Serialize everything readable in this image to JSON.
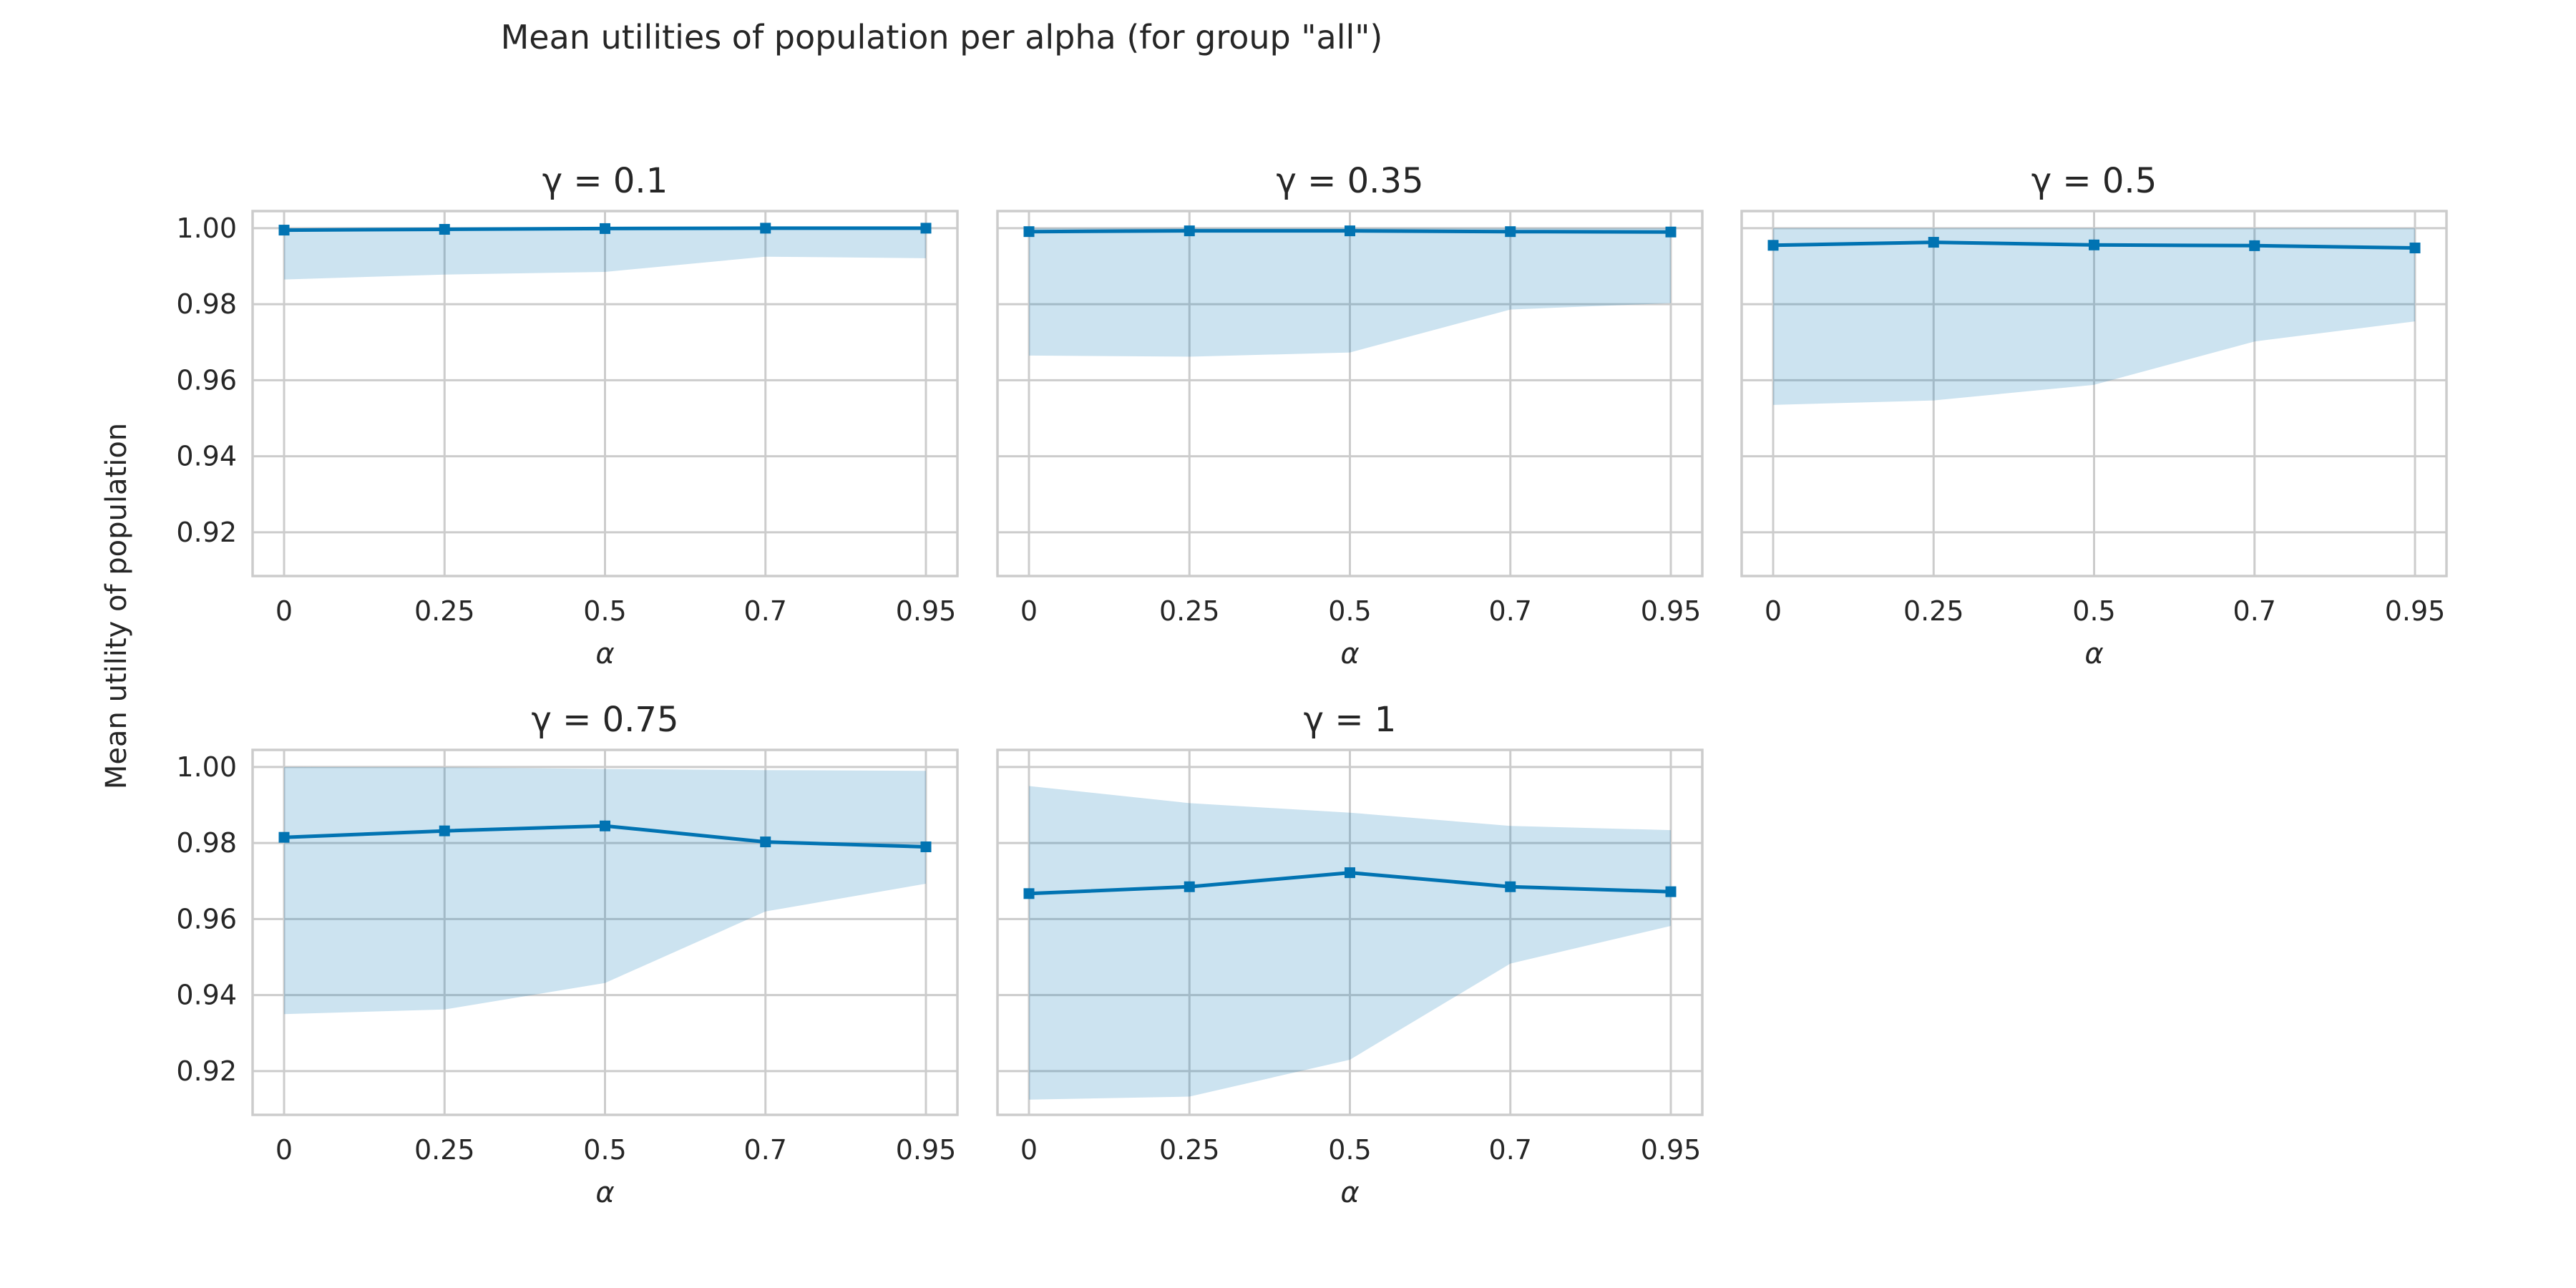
{
  "figure": {
    "suptitle": "Mean utilities of population per alpha (for group \"all\")",
    "ylabel": "Mean utility of population",
    "series_color": "#0173b2"
  },
  "chart_data": [
    {
      "type": "line",
      "title": "γ = 0.1",
      "x": [
        "0",
        "0.25",
        "0.5",
        "0.7",
        "0.95"
      ],
      "xlabel": "α",
      "ylabel": "Mean utility of population",
      "ylim": [
        0.9085,
        1.0045
      ],
      "yticks": [
        "0.92",
        "0.94",
        "0.96",
        "0.98",
        "1.00"
      ],
      "series": [
        {
          "values": [
            0.9995,
            0.9997,
            0.9999,
            1.0,
            1.0
          ],
          "lower": [
            0.9865,
            0.9878,
            0.9885,
            0.9925,
            0.9921
          ],
          "upper": [
            1.0,
            1.0,
            1.0,
            1.0,
            1.0
          ]
        }
      ],
      "grid": true
    },
    {
      "type": "line",
      "title": "γ = 0.35",
      "x": [
        "0",
        "0.25",
        "0.5",
        "0.7",
        "0.95"
      ],
      "xlabel": "α",
      "ylim": [
        0.9085,
        1.0045
      ],
      "yticks": [],
      "series": [
        {
          "values": [
            0.9991,
            0.9993,
            0.9993,
            0.9991,
            0.999
          ],
          "lower": [
            0.9665,
            0.9662,
            0.9673,
            0.9786,
            0.9803
          ],
          "upper": [
            1.0,
            1.0,
            1.0,
            1.0,
            1.0
          ]
        }
      ],
      "grid": true
    },
    {
      "type": "line",
      "title": "γ = 0.5",
      "x": [
        "0",
        "0.25",
        "0.5",
        "0.7",
        "0.95"
      ],
      "xlabel": "α",
      "ylim": [
        0.9085,
        1.0045
      ],
      "yticks": [],
      "series": [
        {
          "values": [
            0.9955,
            0.9963,
            0.9956,
            0.9954,
            0.9948
          ],
          "lower": [
            0.9535,
            0.9547,
            0.9588,
            0.9702,
            0.9755
          ],
          "upper": [
            1.0,
            1.0,
            1.0,
            1.0,
            1.0
          ]
        }
      ],
      "grid": true
    },
    {
      "type": "line",
      "title": "γ = 0.75",
      "x": [
        "0",
        "0.25",
        "0.5",
        "0.7",
        "0.95"
      ],
      "xlabel": "α",
      "ylabel": "Mean utility of population",
      "ylim": [
        0.9085,
        1.0045
      ],
      "yticks": [
        "0.92",
        "0.94",
        "0.96",
        "0.98",
        "1.00"
      ],
      "series": [
        {
          "values": [
            0.9815,
            0.9832,
            0.9845,
            0.9803,
            0.979
          ],
          "lower": [
            0.935,
            0.9362,
            0.9432,
            0.962,
            0.9693
          ],
          "upper": [
            1.0,
            0.9999,
            0.9995,
            0.9992,
            0.999
          ]
        }
      ],
      "grid": true
    },
    {
      "type": "line",
      "title": "γ = 1",
      "x": [
        "0",
        "0.25",
        "0.5",
        "0.7",
        "0.95"
      ],
      "xlabel": "α",
      "ylim": [
        0.9085,
        1.0045
      ],
      "yticks": [],
      "series": [
        {
          "values": [
            0.9667,
            0.9685,
            0.9722,
            0.9685,
            0.9672
          ],
          "lower": [
            0.9125,
            0.9133,
            0.923,
            0.9483,
            0.9582
          ],
          "upper": [
            0.995,
            0.9905,
            0.988,
            0.9845,
            0.9834
          ]
        }
      ],
      "grid": true
    }
  ]
}
